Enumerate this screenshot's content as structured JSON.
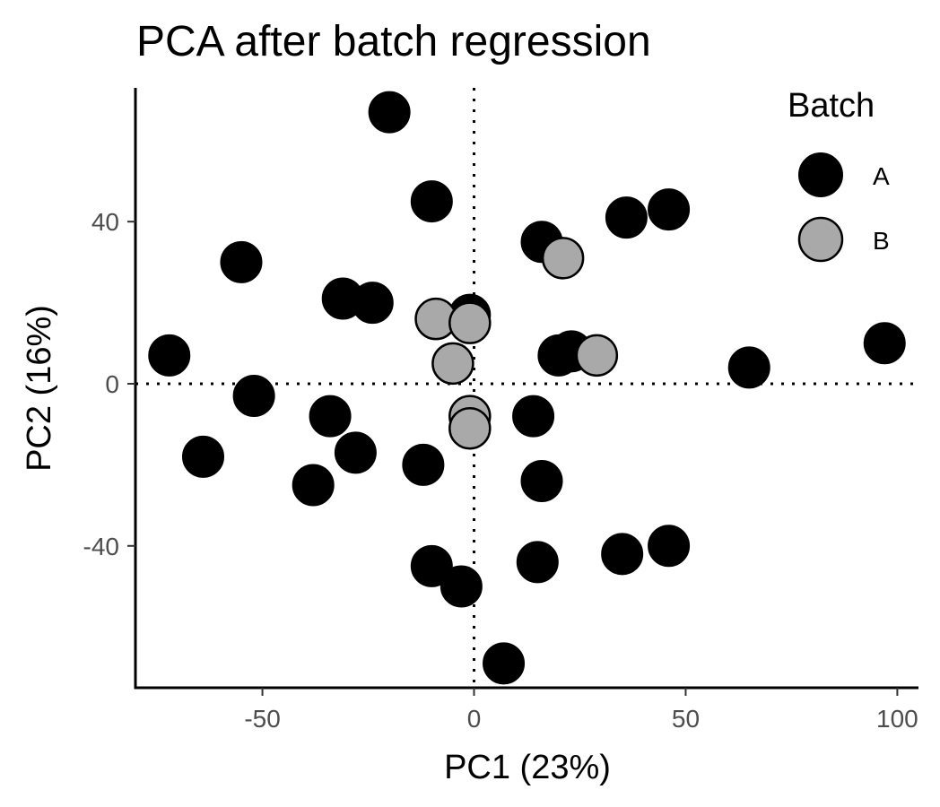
{
  "chart_data": {
    "type": "scatter",
    "title": "PCA after batch regression",
    "xlabel": "PC1 (23%)",
    "ylabel": "PC2 (16%)",
    "xlim": [
      -80,
      105
    ],
    "ylim": [
      -75,
      73
    ],
    "x_ticks": [
      -50,
      0,
      50,
      100
    ],
    "y_ticks": [
      -40,
      0,
      40
    ],
    "x_tick_labels": [
      "-50",
      "0",
      "50",
      "100"
    ],
    "y_tick_labels": [
      "-40",
      "0",
      "40"
    ],
    "reference_lines": {
      "x": 0,
      "y": 0,
      "style": "dotted"
    },
    "grid": false,
    "legend": {
      "title": "Batch",
      "position": "top-right"
    },
    "series": [
      {
        "name": "A",
        "color": "#000000",
        "points": [
          [
            -20,
            67
          ],
          [
            -10,
            45
          ],
          [
            -55,
            30
          ],
          [
            -31,
            21
          ],
          [
            -24,
            20
          ],
          [
            -1,
            17
          ],
          [
            -72,
            7
          ],
          [
            -52,
            -3
          ],
          [
            -34,
            -8
          ],
          [
            -64,
            -18
          ],
          [
            -28,
            -17
          ],
          [
            -38,
            -25
          ],
          [
            -12,
            -20
          ],
          [
            -10,
            -45
          ],
          [
            -3,
            -50
          ],
          [
            7,
            -69
          ],
          [
            15,
            -44
          ],
          [
            16,
            -24
          ],
          [
            14,
            -8
          ],
          [
            35,
            -42
          ],
          [
            46,
            -40
          ],
          [
            23,
            8
          ],
          [
            20,
            7
          ],
          [
            16,
            35
          ],
          [
            36,
            41
          ],
          [
            46,
            43
          ],
          [
            65,
            4
          ],
          [
            97,
            10
          ]
        ]
      },
      {
        "name": "B",
        "color": "#a9a9a9",
        "points": [
          [
            21,
            31
          ],
          [
            -9,
            16
          ],
          [
            -1,
            15
          ],
          [
            -5,
            5
          ],
          [
            29,
            7
          ],
          [
            -1,
            -8
          ],
          [
            -1,
            -11
          ]
        ]
      }
    ]
  }
}
